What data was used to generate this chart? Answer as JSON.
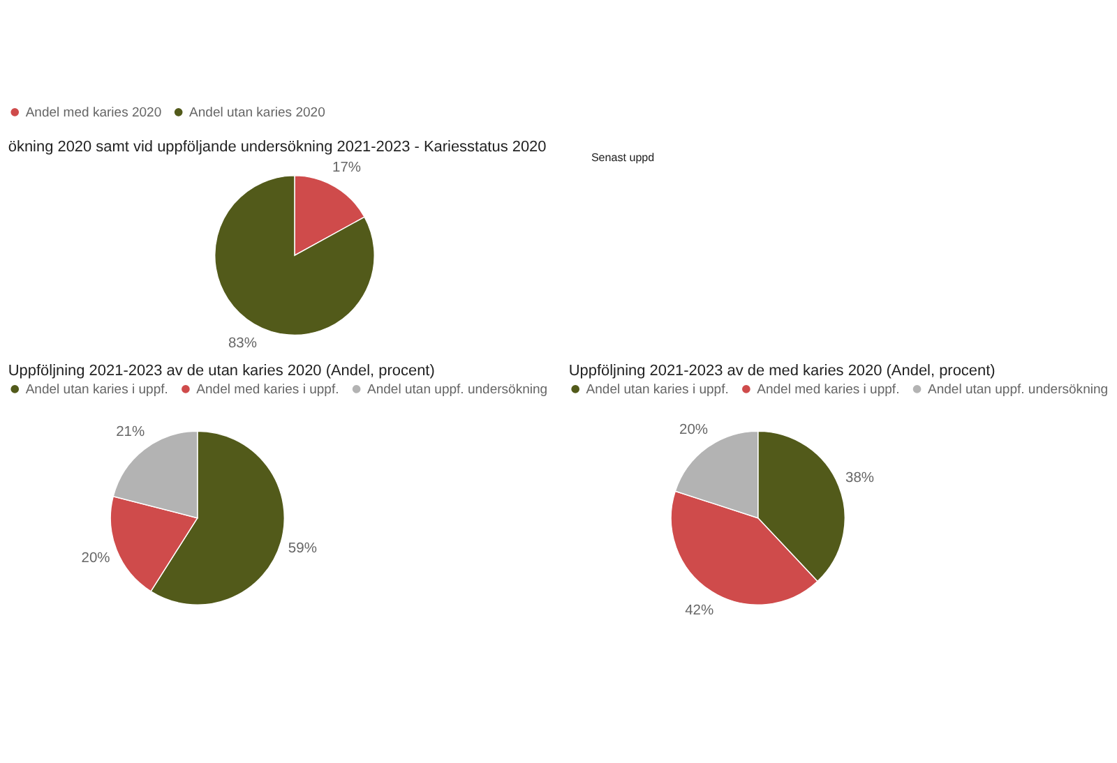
{
  "chart_data": [
    {
      "type": "pie",
      "title": "ökning 2020 samt vid uppföljande undersökning 2021-2023 - Kariesstatus 2020",
      "annotations": [
        "Senast uppd"
      ],
      "categories": [
        "Andel med karies 2020",
        "Andel utan karies 2020"
      ],
      "values": [
        17,
        83
      ],
      "colors": [
        "#cf4b4b",
        "#525a1a"
      ],
      "value_labels": [
        "17%",
        "83%"
      ],
      "legend": "top"
    },
    {
      "type": "pie",
      "title": "Uppföljning 2021-2023 av de utan karies 2020 (Andel, procent)",
      "categories": [
        "Andel utan karies i uppf.",
        "Andel med karies i uppf.",
        "Andel utan uppf. undersökning"
      ],
      "values": [
        59,
        20,
        21
      ],
      "colors": [
        "#525a1a",
        "#cf4b4b",
        "#b3b3b3"
      ],
      "value_labels": [
        "59%",
        "20%",
        "21%"
      ],
      "legend": "top"
    },
    {
      "type": "pie",
      "title": "Uppföljning 2021-2023 av de med karies 2020 (Andel, procent)",
      "categories": [
        "Andel utan karies i uppf.",
        "Andel med karies i uppf.",
        "Andel utan uppf. undersökning"
      ],
      "values": [
        38,
        42,
        20
      ],
      "colors": [
        "#525a1a",
        "#cf4b4b",
        "#b3b3b3"
      ],
      "value_labels": [
        "38%",
        "42%",
        "20%"
      ],
      "legend": "top"
    }
  ]
}
